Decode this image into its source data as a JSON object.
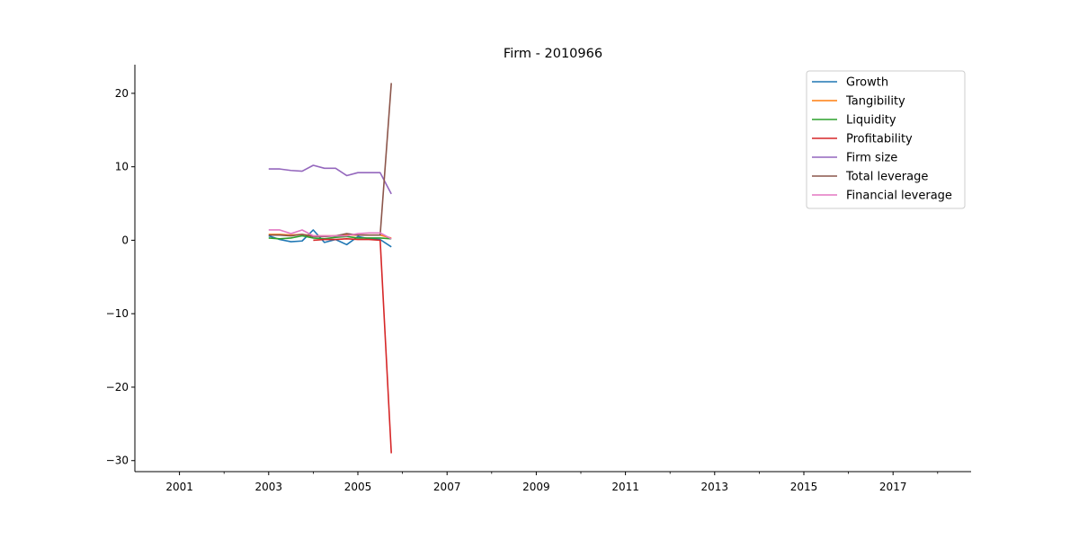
{
  "chart_data": {
    "type": "line",
    "title": "Firm - 2010966",
    "xlabel": "",
    "ylabel": "",
    "xlim": [
      2000.0,
      2018.75
    ],
    "ylim": [
      -31.5,
      23.9
    ],
    "x_ticks_major": [
      2001,
      2003,
      2005,
      2007,
      2009,
      2011,
      2013,
      2015,
      2017
    ],
    "x_ticks_minor": [
      2002,
      2004,
      2006,
      2008,
      2010,
      2012,
      2014,
      2016,
      2018
    ],
    "y_ticks": [
      -30,
      -20,
      -10,
      0,
      10,
      20
    ],
    "grid": false,
    "legend_position": "upper-right",
    "x": [
      2003.0,
      2003.25,
      2003.5,
      2003.75,
      2004.0,
      2004.25,
      2004.5,
      2004.75,
      2005.0,
      2005.25,
      2005.5,
      2005.75
    ],
    "series": [
      {
        "name": "Growth",
        "color": "#1f77b4",
        "values": [
          0.6,
          0.1,
          -0.2,
          -0.1,
          1.4,
          -0.3,
          0.1,
          -0.6,
          0.5,
          0.2,
          0.1,
          -0.9
        ]
      },
      {
        "name": "Tangibility",
        "color": "#ff7f0e",
        "values": [
          0.8,
          0.8,
          0.7,
          0.8,
          0.6,
          0.6,
          0.6,
          0.7,
          0.7,
          0.7,
          0.7,
          0.3
        ]
      },
      {
        "name": "Liquidity",
        "color": "#2ca02c",
        "values": [
          0.3,
          0.2,
          0.3,
          0.6,
          0.3,
          0.2,
          0.4,
          0.5,
          0.3,
          0.3,
          0.3,
          0.2
        ]
      },
      {
        "name": "Profitability",
        "color": "#d62728",
        "values": [
          null,
          null,
          null,
          null,
          0.0,
          0.1,
          0.1,
          0.2,
          0.1,
          0.1,
          0.0,
          -29.0
        ]
      },
      {
        "name": "Firm size",
        "color": "#9467bd",
        "values": [
          9.7,
          9.7,
          9.5,
          9.4,
          10.2,
          9.8,
          9.8,
          8.8,
          9.2,
          9.2,
          9.2,
          6.3
        ]
      },
      {
        "name": "Total leverage",
        "color": "#8c564b",
        "values": [
          0.7,
          0.7,
          0.6,
          0.8,
          0.5,
          0.5,
          0.6,
          0.9,
          0.7,
          0.7,
          0.7,
          21.4
        ]
      },
      {
        "name": "Financial leverage",
        "color": "#e377c2",
        "values": [
          1.4,
          1.4,
          0.9,
          1.4,
          0.6,
          0.6,
          0.6,
          0.6,
          0.9,
          1.0,
          1.0,
          0.2
        ]
      }
    ]
  }
}
